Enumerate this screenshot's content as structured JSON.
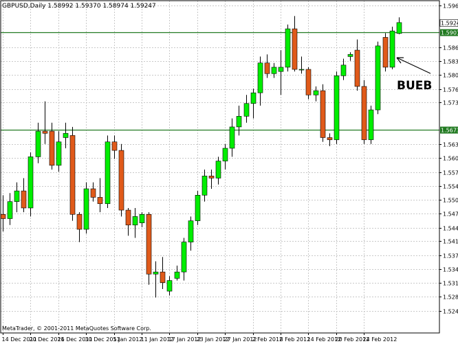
{
  "window": {
    "symbol_line": "GBPUSD,Daily  1.58992 1.59370 1.58974 1.59247",
    "copyright": "MetaTrader, © 2001-2011 MetaQuotes Software Corp."
  },
  "colors": {
    "bull": "#00ee00",
    "bear": "#e05a1a",
    "wick": "#000000",
    "grid": "#c8c8c8",
    "level_line": "#207a20",
    "axis": "#000000",
    "background": "#ffffff"
  },
  "annotation": {
    "text": "BUEB",
    "icon": "arrow-icon"
  },
  "chart_data": {
    "type": "candlestick",
    "title": "GBPUSD,Daily  1.58992 1.59370 1.58974 1.59247",
    "symbol": "GBPUSD",
    "timeframe": "Daily",
    "ylim": [
      1.5197,
      1.5976
    ],
    "y_ticks": [
      "1.59640",
      "1.58670",
      "1.58340",
      "1.58020",
      "1.57690",
      "1.57370",
      "1.56390",
      "1.56070",
      "1.55740",
      "1.55420",
      "1.55090",
      "1.54770",
      "1.54440",
      "1.54120",
      "1.53790",
      "1.53470",
      "1.53140",
      "1.52820",
      "1.52490"
    ],
    "x_ticks": [
      {
        "label": "14 Dec 2011",
        "index": 0
      },
      {
        "label": "20 Dec 2011",
        "index": 4
      },
      {
        "label": "26 Dec 2011",
        "index": 8
      },
      {
        "label": "30 Dec 2011",
        "index": 12
      },
      {
        "label": "5 Jan 2012",
        "index": 16
      },
      {
        "label": "11 Jan 2012",
        "index": 20
      },
      {
        "label": "17 Jan 2012",
        "index": 24
      },
      {
        "label": "23 Jan 2012",
        "index": 28
      },
      {
        "label": "27 Jan 2012",
        "index": 32
      },
      {
        "label": "2 Feb 2012",
        "index": 36
      },
      {
        "label": "8 Feb 2012",
        "index": 40
      },
      {
        "label": "14 Feb 2012",
        "index": 44
      },
      {
        "label": "20 Feb 2012",
        "index": 48
      },
      {
        "label": "24 Feb 2012",
        "index": 52
      }
    ],
    "horizontal_lines": [
      {
        "value": 1.59017,
        "label": "1.59017"
      },
      {
        "value": 1.56731,
        "label": "1.56731"
      }
    ],
    "current_price": {
      "value": 1.59247,
      "label": "1.59247"
    },
    "candles": [
      {
        "open": 1.5475,
        "high": 1.552,
        "low": 1.5435,
        "close": 1.5465
      },
      {
        "open": 1.5465,
        "high": 1.5525,
        "low": 1.545,
        "close": 1.5505
      },
      {
        "open": 1.5505,
        "high": 1.555,
        "low": 1.548,
        "close": 1.553
      },
      {
        "open": 1.553,
        "high": 1.556,
        "low": 1.548,
        "close": 1.549
      },
      {
        "open": 1.549,
        "high": 1.562,
        "low": 1.547,
        "close": 1.561
      },
      {
        "open": 1.561,
        "high": 1.569,
        "low": 1.5595,
        "close": 1.567
      },
      {
        "open": 1.567,
        "high": 1.574,
        "low": 1.564,
        "close": 1.5665
      },
      {
        "open": 1.567,
        "high": 1.569,
        "low": 1.558,
        "close": 1.559
      },
      {
        "open": 1.559,
        "high": 1.567,
        "low": 1.5575,
        "close": 1.5645
      },
      {
        "open": 1.5655,
        "high": 1.569,
        "low": 1.563,
        "close": 1.5665
      },
      {
        "open": 1.566,
        "high": 1.568,
        "low": 1.546,
        "close": 1.5475
      },
      {
        "open": 1.5475,
        "high": 1.548,
        "low": 1.541,
        "close": 1.544
      },
      {
        "open": 1.544,
        "high": 1.555,
        "low": 1.543,
        "close": 1.5535
      },
      {
        "open": 1.5535,
        "high": 1.555,
        "low": 1.5505,
        "close": 1.5515
      },
      {
        "open": 1.5515,
        "high": 1.556,
        "low": 1.548,
        "close": 1.55
      },
      {
        "open": 1.55,
        "high": 1.566,
        "low": 1.549,
        "close": 1.5645
      },
      {
        "open": 1.5645,
        "high": 1.566,
        "low": 1.5605,
        "close": 1.5625
      },
      {
        "open": 1.5625,
        "high": 1.564,
        "low": 1.547,
        "close": 1.5485
      },
      {
        "open": 1.5485,
        "high": 1.549,
        "low": 1.5425,
        "close": 1.545
      },
      {
        "open": 1.545,
        "high": 1.549,
        "low": 1.542,
        "close": 1.547
      },
      {
        "open": 1.5455,
        "high": 1.548,
        "low": 1.5445,
        "close": 1.5475
      },
      {
        "open": 1.5475,
        "high": 1.548,
        "low": 1.531,
        "close": 1.5335
      },
      {
        "open": 1.5335,
        "high": 1.5365,
        "low": 1.528,
        "close": 1.534
      },
      {
        "open": 1.534,
        "high": 1.5375,
        "low": 1.53,
        "close": 1.5315
      },
      {
        "open": 1.5295,
        "high": 1.533,
        "low": 1.5285,
        "close": 1.532
      },
      {
        "open": 1.5325,
        "high": 1.5355,
        "low": 1.532,
        "close": 1.534
      },
      {
        "open": 1.534,
        "high": 1.542,
        "low": 1.532,
        "close": 1.541
      },
      {
        "open": 1.541,
        "high": 1.547,
        "low": 1.539,
        "close": 1.546
      },
      {
        "open": 1.546,
        "high": 1.553,
        "low": 1.545,
        "close": 1.552
      },
      {
        "open": 1.552,
        "high": 1.558,
        "low": 1.5505,
        "close": 1.5565
      },
      {
        "open": 1.5565,
        "high": 1.558,
        "low": 1.5535,
        "close": 1.556
      },
      {
        "open": 1.556,
        "high": 1.561,
        "low": 1.5545,
        "close": 1.56
      },
      {
        "open": 1.56,
        "high": 1.564,
        "low": 1.558,
        "close": 1.563
      },
      {
        "open": 1.563,
        "high": 1.57,
        "low": 1.561,
        "close": 1.568
      },
      {
        "open": 1.568,
        "high": 1.573,
        "low": 1.566,
        "close": 1.5705
      },
      {
        "open": 1.5705,
        "high": 1.5755,
        "low": 1.569,
        "close": 1.5735
      },
      {
        "open": 1.5735,
        "high": 1.577,
        "low": 1.57,
        "close": 1.576
      },
      {
        "open": 1.576,
        "high": 1.5845,
        "low": 1.573,
        "close": 1.583
      },
      {
        "open": 1.583,
        "high": 1.585,
        "low": 1.5795,
        "close": 1.5805
      },
      {
        "open": 1.5805,
        "high": 1.583,
        "low": 1.5795,
        "close": 1.582
      },
      {
        "open": 1.581,
        "high": 1.586,
        "low": 1.5755,
        "close": 1.582
      },
      {
        "open": 1.582,
        "high": 1.592,
        "low": 1.581,
        "close": 1.591
      },
      {
        "open": 1.591,
        "high": 1.594,
        "low": 1.581,
        "close": 1.5815
      },
      {
        "open": 1.5815,
        "high": 1.5845,
        "low": 1.5805,
        "close": 1.5815
      },
      {
        "open": 1.5815,
        "high": 1.582,
        "low": 1.5745,
        "close": 1.5755
      },
      {
        "open": 1.5755,
        "high": 1.5775,
        "low": 1.574,
        "close": 1.5765
      },
      {
        "open": 1.5765,
        "high": 1.578,
        "low": 1.5645,
        "close": 1.5655
      },
      {
        "open": 1.5655,
        "high": 1.5665,
        "low": 1.5635,
        "close": 1.565
      },
      {
        "open": 1.565,
        "high": 1.581,
        "low": 1.564,
        "close": 1.58
      },
      {
        "open": 1.58,
        "high": 1.584,
        "low": 1.579,
        "close": 1.5825
      },
      {
        "open": 1.5845,
        "high": 1.5855,
        "low": 1.5835,
        "close": 1.585
      },
      {
        "open": 1.586,
        "high": 1.5885,
        "low": 1.5765,
        "close": 1.5775
      },
      {
        "open": 1.5775,
        "high": 1.579,
        "low": 1.564,
        "close": 1.565
      },
      {
        "open": 1.565,
        "high": 1.573,
        "low": 1.564,
        "close": 1.572
      },
      {
        "open": 1.572,
        "high": 1.588,
        "low": 1.571,
        "close": 1.587
      },
      {
        "open": 1.589,
        "high": 1.59,
        "low": 1.581,
        "close": 1.582
      },
      {
        "open": 1.582,
        "high": 1.5915,
        "low": 1.5815,
        "close": 1.5905
      },
      {
        "open": 1.58992,
        "high": 1.5937,
        "low": 1.58974,
        "close": 1.59247
      }
    ]
  }
}
